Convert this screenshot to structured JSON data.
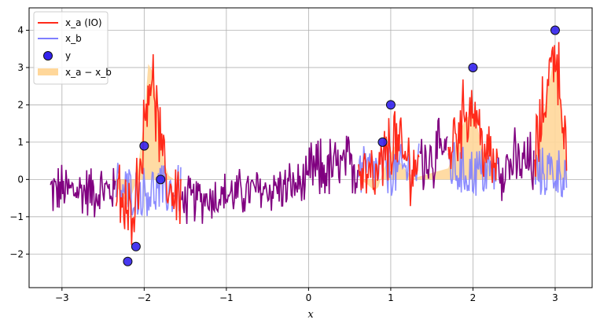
{
  "chart_data": {
    "type": "line",
    "title": "",
    "xlabel": "x",
    "ylabel": "",
    "xlim": [
      -3.4,
      3.45
    ],
    "ylim": [
      -2.9,
      4.6
    ],
    "grid": true,
    "legend_position": "top-left",
    "x_ticks": [
      -3,
      -2,
      -1,
      0,
      1,
      2,
      3
    ],
    "y_ticks": [
      -2,
      -1,
      0,
      1,
      2,
      3,
      4
    ],
    "legend": [
      {
        "label": "x_a (IO)",
        "kind": "line",
        "color": "#ff2a1a"
      },
      {
        "label": "x_b",
        "kind": "line",
        "color": "#7f7fff"
      },
      {
        "label": "y",
        "kind": "marker",
        "color": "#3322ee"
      },
      {
        "label": "x_a − x_b",
        "kind": "fill",
        "color": "#ffd79a"
      }
    ],
    "colors": {
      "x_a": "#ff2a1a",
      "x_b": "#7f7fff",
      "overlap": "#800080",
      "y": "#3322ee",
      "diff_fill": "#ffd79a",
      "grid": "#b0b0b0"
    },
    "series": [
      {
        "name": "y",
        "kind": "scatter",
        "x": [
          -2.2,
          -2.1,
          -2.0,
          -1.8,
          0.9,
          1.0,
          2.0,
          3.0
        ],
        "y": [
          -2.2,
          -1.8,
          0.9,
          0.0,
          1.0,
          2.0,
          3.0,
          4.0
        ]
      },
      {
        "name": "x_a − x_b",
        "kind": "area",
        "x": [
          -2.4,
          -2.3,
          -2.2,
          -2.1,
          -2.0,
          -1.95,
          -1.9,
          -1.85,
          -1.8,
          -1.75,
          -1.7,
          -1.6,
          -1.5,
          0.6,
          0.7,
          0.8,
          0.85,
          0.9,
          1.0,
          1.05,
          1.1,
          1.2,
          1.3,
          1.7,
          1.8,
          1.9,
          2.0,
          2.05,
          2.1,
          2.2,
          2.3,
          2.7,
          2.8,
          2.9,
          3.0,
          3.05,
          3.1,
          3.15
        ],
        "y": [
          0.0,
          -0.3,
          -0.7,
          -0.1,
          1.6,
          3.1,
          2.9,
          2.1,
          1.2,
          0.4,
          0.1,
          -0.05,
          0.0,
          0.0,
          -0.1,
          -0.3,
          -0.2,
          0.2,
          0.7,
          0.9,
          0.5,
          0.2,
          0.05,
          0.3,
          1.0,
          1.6,
          1.8,
          1.5,
          0.9,
          0.3,
          0.0,
          0.0,
          0.9,
          2.3,
          3.4,
          2.5,
          1.4,
          0.0
        ]
      }
    ]
  }
}
